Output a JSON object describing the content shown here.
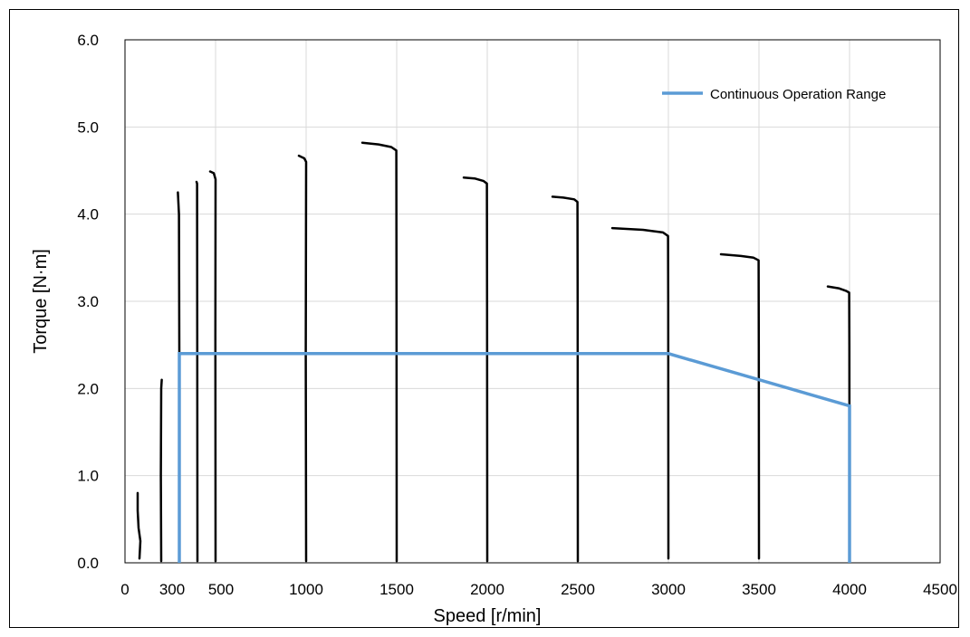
{
  "chart_data": {
    "type": "line",
    "title": "",
    "xlabel": "Speed [r/min]",
    "ylabel": "Torque [N·m]",
    "xlim": [
      0,
      4500
    ],
    "ylim": [
      0,
      6
    ],
    "grid": true,
    "legend_position": "top-right",
    "x_ticks": [
      {
        "value": 0,
        "label": "0"
      },
      {
        "value": 300,
        "label": "300"
      },
      {
        "value": 500,
        "label": "500"
      },
      {
        "value": 1000,
        "label": "1000"
      },
      {
        "value": 1500,
        "label": "1500"
      },
      {
        "value": 2000,
        "label": "2000"
      },
      {
        "value": 2500,
        "label": "2500"
      },
      {
        "value": 3000,
        "label": "3000"
      },
      {
        "value": 3500,
        "label": "3500"
      },
      {
        "value": 4000,
        "label": "4000"
      },
      {
        "value": 4500,
        "label": "4500"
      }
    ],
    "x_gridlines": [
      0,
      500,
      1000,
      1500,
      2000,
      2500,
      3000,
      3500,
      4000,
      4500
    ],
    "y_ticks": [
      {
        "value": 0,
        "label": "0.0"
      },
      {
        "value": 1,
        "label": "1.0"
      },
      {
        "value": 2,
        "label": "2.0"
      },
      {
        "value": 3,
        "label": "3.0"
      },
      {
        "value": 4,
        "label": "4.0"
      },
      {
        "value": 5,
        "label": "5.0"
      },
      {
        "value": 6,
        "label": "6.0"
      }
    ],
    "continuous_range": {
      "name": "Continuous Operation Range",
      "color": "#5B9BD5",
      "points": [
        [
          300,
          0
        ],
        [
          300,
          2.4
        ],
        [
          3000,
          2.4
        ],
        [
          4000,
          1.8
        ],
        [
          4000,
          0
        ]
      ]
    },
    "torque_curves": {
      "color": "#000000",
      "curves": [
        {
          "points": [
            [
              80,
              0.05
            ],
            [
              85,
              0.25
            ],
            [
              75,
              0.4
            ],
            [
              70,
              0.6
            ],
            [
              70,
              0.8
            ]
          ]
        },
        {
          "points": [
            [
              200,
              0.02
            ],
            [
              198,
              1.0
            ],
            [
              200,
              2.0
            ],
            [
              203,
              2.1
            ]
          ]
        },
        {
          "points": [
            [
              300,
              0.02
            ],
            [
              300,
              2.4
            ],
            [
              298,
              4.0
            ],
            [
              292,
              4.25
            ]
          ]
        },
        {
          "points": [
            [
              400,
              0.02
            ],
            [
              399,
              2.5
            ],
            [
              398,
              4.35
            ],
            [
              395,
              4.37
            ]
          ]
        },
        {
          "points": [
            [
              500,
              0.02
            ],
            [
              499,
              2.6
            ],
            [
              500,
              4.4
            ],
            [
              490,
              4.47
            ],
            [
              470,
              4.49
            ]
          ]
        },
        {
          "points": [
            [
              1000,
              0.02
            ],
            [
              998,
              2.4
            ],
            [
              1000,
              4.6
            ],
            [
              990,
              4.64
            ],
            [
              960,
              4.67
            ]
          ]
        },
        {
          "points": [
            [
              1500,
              0.02
            ],
            [
              1499,
              3.0
            ],
            [
              1498,
              4.73
            ],
            [
              1470,
              4.77
            ],
            [
              1400,
              4.8
            ],
            [
              1310,
              4.82
            ]
          ]
        },
        {
          "points": [
            [
              2000,
              0.02
            ],
            [
              1999,
              3.0
            ],
            [
              1998,
              4.35
            ],
            [
              1980,
              4.38
            ],
            [
              1930,
              4.41
            ],
            [
              1870,
              4.42
            ]
          ]
        },
        {
          "points": [
            [
              2500,
              0.02
            ],
            [
              2499,
              3.0
            ],
            [
              2498,
              4.14
            ],
            [
              2480,
              4.17
            ],
            [
              2420,
              4.19
            ],
            [
              2360,
              4.2
            ]
          ]
        },
        {
          "points": [
            [
              3000,
              0.05
            ],
            [
              2999,
              3.0
            ],
            [
              2998,
              3.75
            ],
            [
              2970,
              3.79
            ],
            [
              2860,
              3.82
            ],
            [
              2690,
              3.84
            ]
          ]
        },
        {
          "points": [
            [
              3500,
              0.05
            ],
            [
              3499,
              2.5
            ],
            [
              3498,
              3.47
            ],
            [
              3470,
              3.5
            ],
            [
              3400,
              3.52
            ],
            [
              3290,
              3.54
            ]
          ]
        },
        {
          "points": [
            [
              4000,
              0.05
            ],
            [
              3999,
              2.5
            ],
            [
              3998,
              3.1
            ],
            [
              3980,
              3.12
            ],
            [
              3940,
              3.15
            ],
            [
              3880,
              3.17
            ]
          ]
        }
      ]
    }
  }
}
